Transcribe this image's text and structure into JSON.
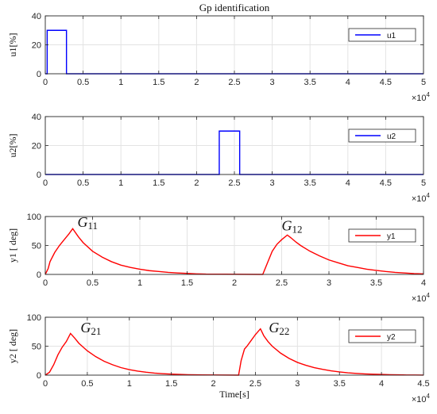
{
  "chart_data": [
    {
      "type": "line",
      "title": "Gp identification",
      "ylabel": "u1[%]",
      "xlabel": "",
      "xlim": [
        0,
        50000
      ],
      "ylim": [
        0,
        40
      ],
      "x_ticks": [
        "0",
        "0.5",
        "1",
        "1.5",
        "2",
        "2.5",
        "3",
        "3.5",
        "4",
        "4.5",
        "5"
      ],
      "x_tick_values": [
        0,
        5000,
        10000,
        15000,
        20000,
        25000,
        30000,
        35000,
        40000,
        45000,
        50000
      ],
      "y_ticks": [
        "0",
        "20",
        "40"
      ],
      "y_tick_values": [
        0,
        20,
        40
      ],
      "x_multiplier": "×10",
      "x_multiplier_exp": "4",
      "grid": true,
      "legend_position": "top-right",
      "series": [
        {
          "name": "u1",
          "color": "#0000ff",
          "x": [
            0,
            250,
            250,
            2800,
            2800,
            50000
          ],
          "y": [
            0,
            0,
            30,
            30,
            0,
            0
          ]
        }
      ],
      "annotations": []
    },
    {
      "type": "line",
      "title": "",
      "ylabel": "u2[%]",
      "xlabel": "",
      "xlim": [
        0,
        50000
      ],
      "ylim": [
        0,
        40
      ],
      "x_ticks": [
        "0",
        "0.5",
        "1",
        "1.5",
        "2",
        "2.5",
        "3",
        "3.5",
        "4",
        "4.5",
        "5"
      ],
      "x_tick_values": [
        0,
        5000,
        10000,
        15000,
        20000,
        25000,
        30000,
        35000,
        40000,
        45000,
        50000
      ],
      "y_ticks": [
        "0",
        "20",
        "40"
      ],
      "y_tick_values": [
        0,
        20,
        40
      ],
      "x_multiplier": "×10",
      "x_multiplier_exp": "4",
      "grid": true,
      "legend_position": "top-right",
      "series": [
        {
          "name": "u2",
          "color": "#0000ff",
          "x": [
            0,
            23000,
            23000,
            25700,
            25700,
            50000
          ],
          "y": [
            0,
            0,
            30,
            30,
            0,
            0
          ]
        }
      ],
      "annotations": []
    },
    {
      "type": "line",
      "title": "",
      "ylabel": "y1 [ deg]",
      "xlabel": "",
      "xlim": [
        0,
        40000
      ],
      "ylim": [
        0,
        100
      ],
      "x_ticks": [
        "0",
        "0.5",
        "1",
        "1.5",
        "2",
        "2.5",
        "3",
        "3.5",
        "4"
      ],
      "x_tick_values": [
        0,
        5000,
        10000,
        15000,
        20000,
        25000,
        30000,
        35000,
        40000
      ],
      "y_ticks": [
        "0",
        "50",
        "100"
      ],
      "y_tick_values": [
        0,
        50,
        100
      ],
      "x_multiplier": "×10",
      "x_multiplier_exp": "4",
      "grid": true,
      "legend_position": "top-right",
      "series": [
        {
          "name": "y1",
          "color": "#ff0000",
          "x": [
            0,
            300,
            500,
            1000,
            1500,
            2000,
            2500,
            2900,
            3500,
            4000,
            5000,
            6000,
            7000,
            8000,
            9000,
            10000,
            11000,
            12000,
            13000,
            14000,
            15000,
            16000,
            17000,
            23000,
            23500,
            24000,
            24500,
            25000,
            25600,
            26000,
            26500,
            27000,
            28000,
            29000,
            30000,
            31000,
            32000,
            33000,
            34000,
            35000,
            36000,
            37000,
            38000,
            39000,
            40000
          ],
          "y": [
            0,
            10,
            22,
            38,
            50,
            60,
            70,
            79,
            65,
            55,
            40,
            30,
            22,
            16,
            12,
            9,
            6.5,
            5,
            3.5,
            2.5,
            1.8,
            1,
            0.5,
            0,
            20,
            40,
            52,
            60,
            68,
            63,
            56,
            50,
            40,
            32,
            25,
            20,
            15,
            12,
            9,
            7,
            5,
            3.5,
            2.5,
            1.5,
            1
          ],
          "x_draw": [
            0,
            300,
            500,
            1000,
            1500,
            2000,
            2500,
            2900,
            3500,
            4000,
            5000,
            6000,
            7000,
            8000,
            9000,
            10000,
            11000,
            12000,
            13000,
            14000,
            15000,
            16000,
            17000,
            23000,
            23500,
            24000,
            24500,
            25000,
            25600,
            26000,
            26500,
            27000,
            28000,
            29000,
            30000,
            31000,
            32000,
            33000,
            34000,
            35000,
            36000,
            37000,
            38000,
            39000,
            40000
          ]
        }
      ],
      "annotations": [
        {
          "base": "G",
          "sub": "11",
          "x": 3400,
          "y": 82
        },
        {
          "base": "G",
          "sub": "12",
          "x": 25000,
          "y": 76
        }
      ]
    },
    {
      "type": "line",
      "title": "",
      "ylabel": "y2 [ deg]",
      "xlabel": "Time[s]",
      "xlim": [
        0,
        45000
      ],
      "ylim": [
        0,
        100
      ],
      "x_ticks": [
        "0",
        "0.5",
        "1",
        "1.5",
        "2",
        "2.5",
        "3",
        "3.5",
        "4",
        "4.5"
      ],
      "x_tick_values": [
        0,
        5000,
        10000,
        15000,
        20000,
        25000,
        30000,
        35000,
        40000,
        45000
      ],
      "y_ticks": [
        "0",
        "50",
        "100"
      ],
      "y_tick_values": [
        0,
        50,
        100
      ],
      "x_multiplier": "×10",
      "x_multiplier_exp": "4",
      "grid": true,
      "legend_position": "top-right",
      "series": [
        {
          "name": "y2",
          "color": "#ff0000",
          "x": [
            0,
            500,
            1000,
            1500,
            2000,
            2500,
            3000,
            3500,
            4000,
            5000,
            6000,
            7000,
            8000,
            9000,
            10000,
            11000,
            12000,
            13000,
            14000,
            15000,
            16000,
            17000,
            18000,
            23000,
            23300,
            23700,
            24000,
            24500,
            25000,
            25600,
            26000,
            26500,
            27000,
            28000,
            29000,
            30000,
            31000,
            32000,
            33000,
            34000,
            35000,
            36000,
            37000,
            38000,
            39000,
            40000,
            41000,
            42000,
            43000,
            44000,
            45000
          ],
          "y": [
            0,
            5,
            18,
            35,
            48,
            58,
            72,
            64,
            55,
            42,
            32,
            24,
            18,
            13,
            9.5,
            7,
            5,
            3.5,
            2.5,
            1.8,
            1.2,
            0.8,
            0.5,
            0,
            25,
            45,
            50,
            60,
            70,
            80,
            68,
            58,
            50,
            38,
            29,
            22,
            17,
            13,
            10,
            7.5,
            5.5,
            4,
            3,
            2.2,
            1.6,
            1.2,
            0.8,
            0.5,
            0.3,
            0.2,
            0.1
          ]
        }
      ],
      "annotations": [
        {
          "base": "G",
          "sub": "21",
          "x": 4200,
          "y": 74
        },
        {
          "base": "G",
          "sub": "22",
          "x": 26600,
          "y": 74
        }
      ]
    }
  ]
}
